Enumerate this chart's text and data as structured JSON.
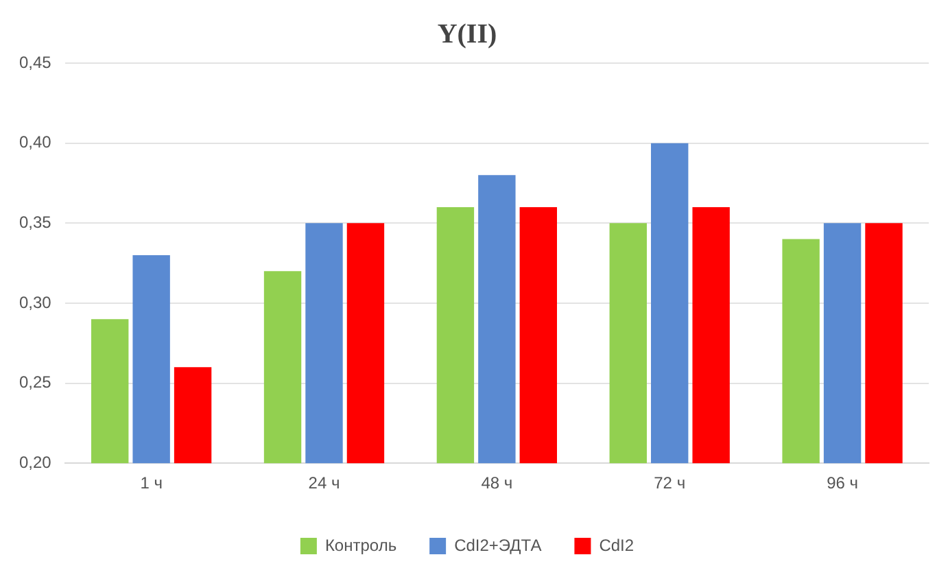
{
  "chart_data": {
    "type": "bar",
    "title": "Y(II)",
    "categories": [
      "1 ч",
      "24 ч",
      "48 ч",
      "72 ч",
      "96 ч"
    ],
    "series": [
      {
        "name": "Контроль",
        "color": "#92d050",
        "values": [
          0.29,
          0.32,
          0.36,
          0.35,
          0.34
        ]
      },
      {
        "name": "CdI2+ЭДТА",
        "color": "#5a8ad2",
        "values": [
          0.33,
          0.35,
          0.38,
          0.4,
          0.35
        ]
      },
      {
        "name": "CdI2",
        "color": "#ff0000",
        "values": [
          0.26,
          0.35,
          0.36,
          0.36,
          0.35
        ]
      }
    ],
    "ylim": [
      0.2,
      0.45
    ],
    "yticks": [
      {
        "value": 0.2,
        "label": "0,20"
      },
      {
        "value": 0.25,
        "label": "0,25"
      },
      {
        "value": 0.3,
        "label": "0,30"
      },
      {
        "value": 0.35,
        "label": "0,35"
      },
      {
        "value": 0.4,
        "label": "0,40"
      },
      {
        "value": 0.45,
        "label": "0,45"
      }
    ],
    "grid": "y",
    "legend": "bottom"
  }
}
